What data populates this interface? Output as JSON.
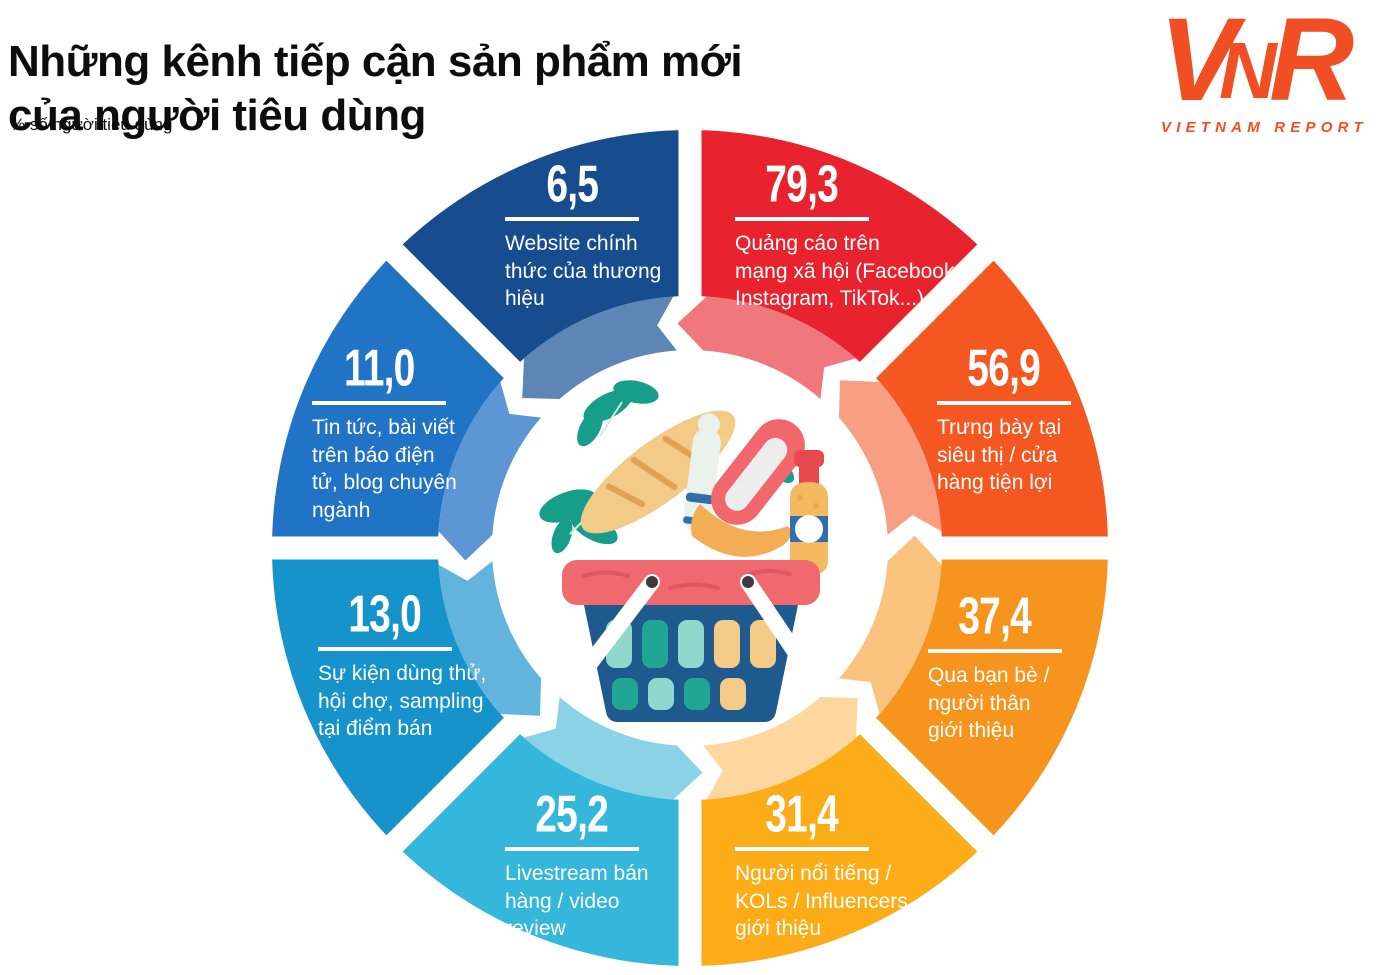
{
  "header": {
    "title": "Những kênh tiếp cận sản phẩm mới\ncủa người tiêu dùng",
    "subtitle": "% số người tiêu dùng"
  },
  "logo": {
    "letter_v": "V",
    "letter_n": "N",
    "letter_r": "R",
    "caption": "VIETNAM REPORT",
    "color": "#F04F23"
  },
  "chart_data": {
    "type": "pie",
    "variant": "circular-chevron-donut",
    "title": "Những kênh tiếp cận sản phẩm mới của người tiêu dùng",
    "unit": "% số người tiêu dùng",
    "equal_angular_segments": true,
    "segment_angle_deg": 45,
    "start_position": "12-oclock-clockwise",
    "center_icon": "grocery-basket",
    "segments": [
      {
        "label": "Quảng cáo trên mạng xã hội (Facebook, Instagram, TikTok...)",
        "label_lines": "Quảng cáo trên\nmạng xã hội (Facebook,\nInstagram, TikTok...)",
        "value": 79.3,
        "display_value": "79,3",
        "color": "#E8232E",
        "light_color": "#F0787D"
      },
      {
        "label": "Trưng bày tại siêu thị / cửa hàng tiện lợi",
        "label_lines": "Trưng bày tại\nsiêu thị / cửa\nhàng tiện lợi",
        "value": 56.9,
        "display_value": "56,9",
        "color": "#F4571F",
        "light_color": "#F89E82"
      },
      {
        "label": "Qua bạn bè / người thân giới thiệu",
        "label_lines": "Qua bạn bè /\nngười thân\ngiới thiệu",
        "value": 37.4,
        "display_value": "37,4",
        "color": "#F7941D",
        "light_color": "#FBC47E"
      },
      {
        "label": "Người nổi tiếng / KOLs / Influencers giới thiệu",
        "label_lines": "Người nổi tiếng /\nKOLs / Influencers\ngiới thiệu",
        "value": 31.4,
        "display_value": "31,4",
        "color": "#FBAC16",
        "light_color": "#FDD79D"
      },
      {
        "label": "Livestream bán hàng / video review",
        "label_lines": "Livestream bán\nhàng / video\nreview",
        "value": 25.2,
        "display_value": "25,2",
        "color": "#35B7DB",
        "light_color": "#8AD3E7"
      },
      {
        "label": "Sự kiện dùng thử, hội chợ, sampling tại điểm bán",
        "label_lines": "Sự kiện dùng thử,\nhội chợ, sampling\ntại điểm bán",
        "value": 13.0,
        "display_value": "13,0",
        "color": "#1793CC",
        "light_color": "#62B4DC"
      },
      {
        "label": "Tin tức, bài viết trên báo điện tử, blog chuyên ngành",
        "label_lines": "Tin tức, bài viết\ntrên báo điện\ntử, blog chuyên\nngành",
        "value": 11.0,
        "display_value": "11,0",
        "color": "#2173C5",
        "light_color": "#5C96D4"
      },
      {
        "label": "Website chính thức của thương hiệu",
        "label_lines": "Website chính\nthức của thương\nhiệu",
        "value": 6.5,
        "display_value": "6,5",
        "color": "#174D8F",
        "light_color": "#5D85B5"
      }
    ]
  }
}
